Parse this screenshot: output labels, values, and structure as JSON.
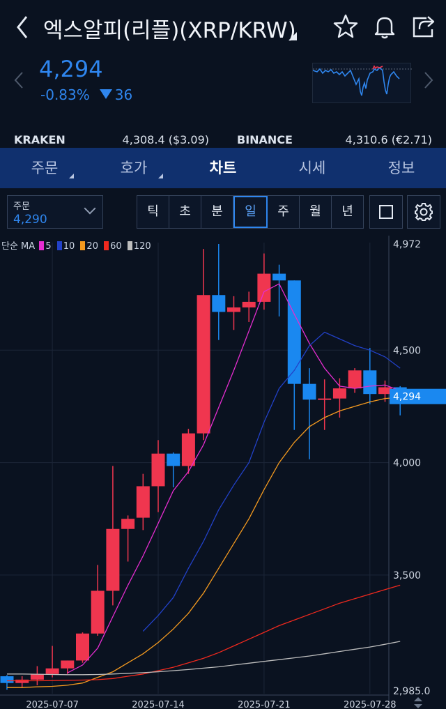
{
  "header": {
    "title": "엑스알피(리플)(XRP/KRW)"
  },
  "price": {
    "current": "4,294",
    "change_pct": "-0.83%",
    "change_abs": "36"
  },
  "exchanges": [
    {
      "name": "KRAKEN",
      "value": "4,308.4 ($3.09)"
    },
    {
      "name": "BINANCE",
      "value": "4,310.6 (€2.71)"
    }
  ],
  "tabs": [
    {
      "label": "주문",
      "has_menu": true
    },
    {
      "label": "호가",
      "has_menu": true
    },
    {
      "label": "차트",
      "active": true
    },
    {
      "label": "시세"
    },
    {
      "label": "정보"
    }
  ],
  "order": {
    "label": "주문",
    "value": "4,290"
  },
  "periods": [
    "틱",
    "초",
    "분",
    "일",
    "주",
    "월",
    "년"
  ],
  "active_period": "일",
  "legend": {
    "prefix": "단순 MA",
    "items": [
      {
        "label": "5",
        "color": "#e52dd0"
      },
      {
        "label": "10",
        "color": "#2241c8"
      },
      {
        "label": "20",
        "color": "#f49a1f"
      },
      {
        "label": "60",
        "color": "#f0291e"
      },
      {
        "label": "120",
        "color": "#bdbdbd"
      }
    ]
  },
  "colors": {
    "up": "#f0364f",
    "down": "#1a88f0",
    "accent": "#2f86ee",
    "tab_bar": "#10306e"
  },
  "chart_data": {
    "type": "candlestick",
    "ylim": [
      2985.0,
      4972
    ],
    "y_ticks": [
      "4,972",
      "4,500",
      "4,000",
      "3,500",
      "2,985.0"
    ],
    "y_tick_values": [
      4972,
      4500,
      4000,
      3500,
      2985
    ],
    "x_ticks": [
      "2025-07-07",
      "2025-07-14",
      "2025-07-21",
      "2025-07-28"
    ],
    "last_price_label": "4,294",
    "last_price": 4294,
    "candles": [
      {
        "date": "2025-07-04",
        "o": 3050,
        "h": 3055,
        "l": 2990,
        "c": 3020
      },
      {
        "date": "2025-07-05",
        "o": 3020,
        "h": 3050,
        "l": 3000,
        "c": 3035
      },
      {
        "date": "2025-07-06",
        "o": 3035,
        "h": 3095,
        "l": 3010,
        "c": 3060
      },
      {
        "date": "2025-07-07",
        "o": 3060,
        "h": 3185,
        "l": 3045,
        "c": 3085
      },
      {
        "date": "2025-07-08",
        "o": 3085,
        "h": 3120,
        "l": 3060,
        "c": 3120
      },
      {
        "date": "2025-07-09",
        "o": 3120,
        "h": 3245,
        "l": 3110,
        "c": 3240
      },
      {
        "date": "2025-07-10",
        "o": 3240,
        "h": 3545,
        "l": 3230,
        "c": 3430
      },
      {
        "date": "2025-07-11",
        "o": 3430,
        "h": 3985,
        "l": 3365,
        "c": 3705
      },
      {
        "date": "2025-07-12",
        "o": 3705,
        "h": 3765,
        "l": 3560,
        "c": 3750
      },
      {
        "date": "2025-07-13",
        "o": 3755,
        "h": 3950,
        "l": 3700,
        "c": 3895
      },
      {
        "date": "2025-07-14",
        "o": 3895,
        "h": 4100,
        "l": 3780,
        "c": 4040
      },
      {
        "date": "2025-07-15",
        "o": 4040,
        "h": 4045,
        "l": 3890,
        "c": 3985
      },
      {
        "date": "2025-07-16",
        "o": 3985,
        "h": 4150,
        "l": 3950,
        "c": 4130
      },
      {
        "date": "2025-07-17",
        "o": 4130,
        "h": 4950,
        "l": 4100,
        "c": 4745
      },
      {
        "date": "2025-07-18",
        "o": 4745,
        "h": 4972,
        "l": 4545,
        "c": 4670
      },
      {
        "date": "2025-07-19",
        "o": 4670,
        "h": 4740,
        "l": 4590,
        "c": 4690
      },
      {
        "date": "2025-07-20",
        "o": 4690,
        "h": 4760,
        "l": 4625,
        "c": 4715
      },
      {
        "date": "2025-07-21",
        "o": 4715,
        "h": 4930,
        "l": 4680,
        "c": 4840
      },
      {
        "date": "2025-07-22",
        "o": 4840,
        "h": 4880,
        "l": 4650,
        "c": 4810
      },
      {
        "date": "2025-07-23",
        "o": 4810,
        "h": 4810,
        "l": 4145,
        "c": 4350
      },
      {
        "date": "2025-07-24",
        "o": 4350,
        "h": 4420,
        "l": 4015,
        "c": 4280
      },
      {
        "date": "2025-07-25",
        "o": 4280,
        "h": 4370,
        "l": 4145,
        "c": 4285
      },
      {
        "date": "2025-07-26",
        "o": 4285,
        "h": 4375,
        "l": 4200,
        "c": 4330
      },
      {
        "date": "2025-07-27",
        "o": 4330,
        "h": 4420,
        "l": 4310,
        "c": 4410
      },
      {
        "date": "2025-07-28",
        "o": 4410,
        "h": 4510,
        "l": 4260,
        "c": 4305
      },
      {
        "date": "2025-07-29",
        "o": 4305,
        "h": 4365,
        "l": 4270,
        "c": 4335
      },
      {
        "date": "2025-07-30",
        "o": 4335,
        "h": 4340,
        "l": 4210,
        "c": 4294
      }
    ],
    "ma_series": [
      {
        "name": "5",
        "values": [
          null,
          null,
          null,
          null,
          3065,
          3100,
          3175,
          3315,
          3455,
          3585,
          3730,
          3875,
          3960,
          4080,
          4245,
          4410,
          4585,
          4760,
          4795,
          4660,
          4530,
          4420,
          4340,
          4330,
          4340,
          4345,
          4320
        ]
      },
      {
        "name": "10",
        "values": [
          null,
          null,
          null,
          null,
          null,
          null,
          null,
          null,
          null,
          3250,
          3320,
          3400,
          3530,
          3650,
          3790,
          3900,
          4000,
          4180,
          4330,
          4410,
          4520,
          4580,
          4550,
          4520,
          4500,
          4470,
          4420
        ]
      },
      {
        "name": "20",
        "values": [
          3000,
          3000,
          3003,
          3005,
          3010,
          3020,
          3045,
          3070,
          3110,
          3150,
          3200,
          3260,
          3330,
          3420,
          3530,
          3640,
          3750,
          3880,
          4000,
          4090,
          4160,
          4200,
          4230,
          4250,
          4270,
          4285,
          4290
        ]
      },
      {
        "name": "60",
        "values": [
          3030,
          3030,
          3030,
          3031,
          3032,
          3033,
          3035,
          3040,
          3050,
          3060,
          3075,
          3090,
          3110,
          3130,
          3155,
          3185,
          3215,
          3245,
          3275,
          3300,
          3325,
          3350,
          3375,
          3395,
          3415,
          3435,
          3455
        ]
      },
      {
        "name": "120",
        "values": [
          3060,
          3060,
          3059,
          3058,
          3057,
          3057,
          3058,
          3060,
          3063,
          3066,
          3070,
          3075,
          3080,
          3086,
          3092,
          3100,
          3108,
          3116,
          3124,
          3132,
          3140,
          3150,
          3160,
          3170,
          3180,
          3192,
          3205
        ]
      }
    ]
  }
}
